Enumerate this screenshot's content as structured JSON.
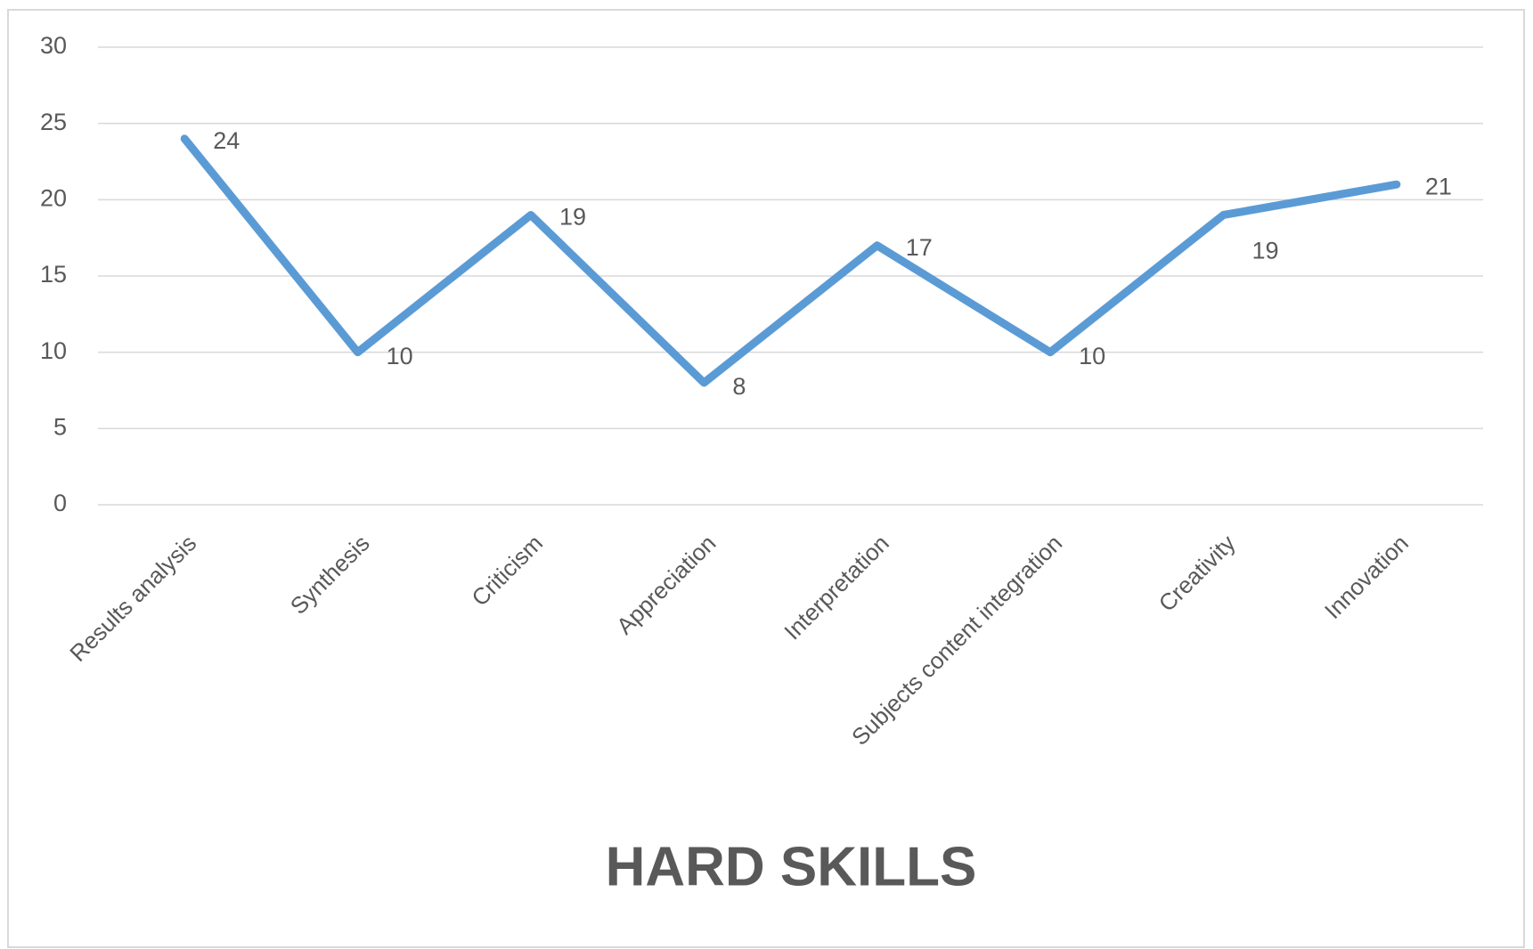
{
  "chart_data": {
    "type": "line",
    "title": "HARD SKILLS",
    "categories": [
      "Results analysis",
      "Synthesis",
      "Criticism",
      "Appreciation",
      "Interpretation",
      "Subjects content integration",
      "Creativity",
      "Innovation"
    ],
    "values": [
      24,
      10,
      19,
      8,
      17,
      10,
      19,
      21
    ],
    "color": "#5b9bd5",
    "ylim": [
      0,
      30
    ],
    "yticks": [
      0,
      5,
      10,
      15,
      20,
      25,
      30
    ],
    "grid": true
  }
}
